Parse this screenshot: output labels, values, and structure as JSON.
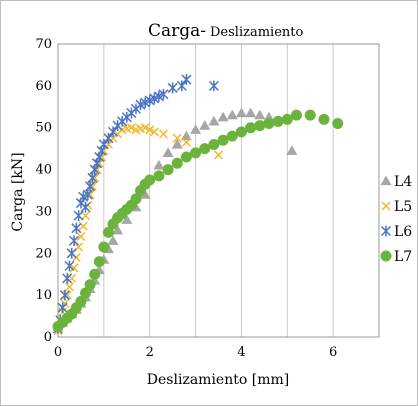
{
  "chart_data": {
    "type": "scatter",
    "title": "Carga-",
    "subtitle": "Deslizamiento",
    "xlabel": "Deslizamiento [mm]",
    "ylabel": "Carga [kN]",
    "xlim": [
      0,
      7
    ],
    "ylim": [
      0,
      70
    ],
    "x_ticks": [
      "0",
      "2",
      "4",
      "6"
    ],
    "y_ticks": [
      "0",
      "10",
      "20",
      "30",
      "40",
      "50",
      "60",
      "70"
    ],
    "grid": "vertical lines at 1 mm steps",
    "legend_position": "right",
    "series": [
      {
        "name": "L4",
        "marker": "triangle",
        "color": "#a6a6a6",
        "points": [
          [
            0.0,
            2.5
          ],
          [
            0.1,
            3.5
          ],
          [
            0.2,
            4.5
          ],
          [
            0.3,
            5.5
          ],
          [
            0.4,
            6.5
          ],
          [
            0.5,
            8
          ],
          [
            0.6,
            9.5
          ],
          [
            0.7,
            11.5
          ],
          [
            0.8,
            13.5
          ],
          [
            0.9,
            16
          ],
          [
            1.0,
            18.5
          ],
          [
            1.1,
            21
          ],
          [
            1.2,
            23
          ],
          [
            1.3,
            25.5
          ],
          [
            1.5,
            28
          ],
          [
            1.7,
            31
          ],
          [
            1.9,
            34
          ],
          [
            2.2,
            41
          ],
          [
            2.4,
            44
          ],
          [
            2.6,
            46
          ],
          [
            2.8,
            48
          ],
          [
            3.0,
            49.5
          ],
          [
            3.2,
            50.5
          ],
          [
            3.4,
            51.5
          ],
          [
            3.6,
            52.5
          ],
          [
            3.8,
            53
          ],
          [
            4.0,
            53.5
          ],
          [
            4.2,
            53.5
          ],
          [
            4.4,
            53
          ],
          [
            4.6,
            52.5
          ],
          [
            5.1,
            44.5
          ]
        ]
      },
      {
        "name": "L5",
        "marker": "x",
        "color": "#f5b829",
        "points": [
          [
            0.0,
            1.5
          ],
          [
            0.05,
            4
          ],
          [
            0.1,
            6
          ],
          [
            0.15,
            8
          ],
          [
            0.2,
            10
          ],
          [
            0.25,
            12
          ],
          [
            0.3,
            14
          ],
          [
            0.35,
            16.5
          ],
          [
            0.4,
            19
          ],
          [
            0.45,
            21.5
          ],
          [
            0.5,
            24
          ],
          [
            0.55,
            26.5
          ],
          [
            0.6,
            29
          ],
          [
            0.65,
            31.5
          ],
          [
            0.7,
            34
          ],
          [
            0.75,
            36
          ],
          [
            0.8,
            38
          ],
          [
            0.85,
            40
          ],
          [
            0.9,
            41.5
          ],
          [
            0.95,
            43
          ],
          [
            1.0,
            44.5
          ],
          [
            1.1,
            46
          ],
          [
            1.2,
            47.5
          ],
          [
            1.3,
            48.5
          ],
          [
            1.4,
            49.5
          ],
          [
            1.5,
            49.8
          ],
          [
            1.6,
            50
          ],
          [
            1.7,
            49.5
          ],
          [
            1.8,
            49.8
          ],
          [
            1.9,
            50
          ],
          [
            2.0,
            49.5
          ],
          [
            2.1,
            49
          ],
          [
            2.3,
            48.5
          ],
          [
            2.6,
            47.5
          ],
          [
            2.8,
            46.5
          ],
          [
            3.5,
            43.5
          ]
        ]
      },
      {
        "name": "L6",
        "marker": "asterisk",
        "color": "#4a74c4",
        "points": [
          [
            0.0,
            2
          ],
          [
            0.05,
            4
          ],
          [
            0.1,
            7
          ],
          [
            0.15,
            10
          ],
          [
            0.2,
            14
          ],
          [
            0.25,
            17
          ],
          [
            0.3,
            20
          ],
          [
            0.35,
            23
          ],
          [
            0.4,
            26
          ],
          [
            0.45,
            29
          ],
          [
            0.5,
            32
          ],
          [
            0.55,
            33.5
          ],
          [
            0.6,
            31
          ],
          [
            0.65,
            34
          ],
          [
            0.7,
            36
          ],
          [
            0.75,
            38
          ],
          [
            0.8,
            40
          ],
          [
            0.85,
            41.5
          ],
          [
            0.9,
            43
          ],
          [
            0.95,
            44.5
          ],
          [
            1.0,
            46
          ],
          [
            1.1,
            47.5
          ],
          [
            1.2,
            49
          ],
          [
            1.3,
            50.5
          ],
          [
            1.4,
            51.5
          ],
          [
            1.5,
            52.5
          ],
          [
            1.6,
            53.5
          ],
          [
            1.7,
            54.5
          ],
          [
            1.8,
            55.5
          ],
          [
            1.9,
            56
          ],
          [
            2.0,
            56.5
          ],
          [
            2.1,
            57
          ],
          [
            2.2,
            57.5
          ],
          [
            2.3,
            58
          ],
          [
            2.5,
            59.5
          ],
          [
            2.7,
            60
          ],
          [
            2.8,
            61.5
          ],
          [
            3.4,
            60
          ]
        ]
      },
      {
        "name": "L7",
        "marker": "circle",
        "color": "#6ab43e",
        "points": [
          [
            0.0,
            2.5
          ],
          [
            0.1,
            3.5
          ],
          [
            0.2,
            4.5
          ],
          [
            0.3,
            5.5
          ],
          [
            0.4,
            7
          ],
          [
            0.5,
            8.5
          ],
          [
            0.6,
            10.5
          ],
          [
            0.7,
            12.5
          ],
          [
            0.8,
            15
          ],
          [
            0.9,
            18
          ],
          [
            1.0,
            21.5
          ],
          [
            1.1,
            25
          ],
          [
            1.2,
            27
          ],
          [
            1.3,
            28.5
          ],
          [
            1.4,
            29.5
          ],
          [
            1.5,
            30.5
          ],
          [
            1.6,
            31.5
          ],
          [
            1.7,
            33
          ],
          [
            1.8,
            35
          ],
          [
            1.9,
            36.5
          ],
          [
            2.0,
            37.5
          ],
          [
            2.2,
            38.5
          ],
          [
            2.4,
            40
          ],
          [
            2.6,
            41.5
          ],
          [
            2.8,
            43
          ],
          [
            3.0,
            44
          ],
          [
            3.2,
            45
          ],
          [
            3.4,
            46
          ],
          [
            3.6,
            47
          ],
          [
            3.8,
            48
          ],
          [
            4.0,
            49
          ],
          [
            4.2,
            50
          ],
          [
            4.4,
            50.5
          ],
          [
            4.6,
            51
          ],
          [
            4.8,
            51.5
          ],
          [
            5.0,
            52
          ],
          [
            5.2,
            53
          ],
          [
            5.5,
            53
          ],
          [
            5.8,
            52
          ],
          [
            6.1,
            51
          ]
        ]
      }
    ]
  }
}
